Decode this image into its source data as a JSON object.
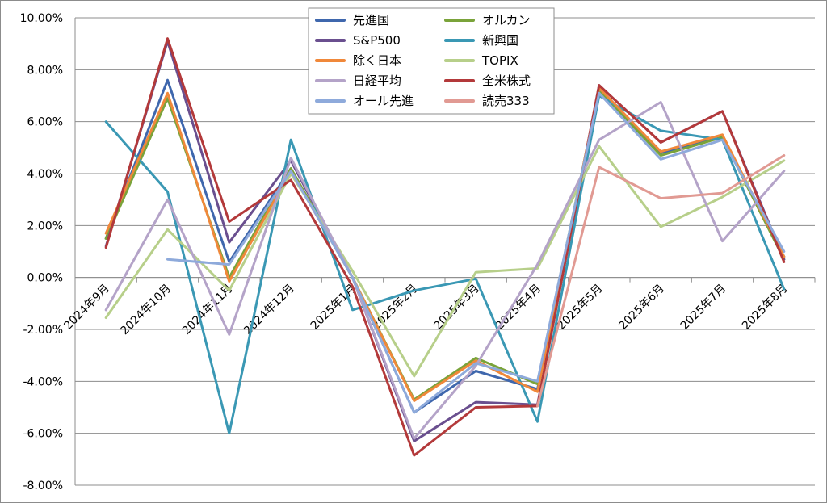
{
  "chart_data": {
    "type": "line",
    "title": "",
    "xlabel": "",
    "ylabel": "",
    "ylim": [
      -0.08,
      0.1
    ],
    "ytick_step": 0.02,
    "grid": true,
    "legend": "top-center",
    "categories": [
      "2024年9月",
      "2024年10月",
      "2024年11月",
      "2024年12月",
      "2025年1月",
      "2025年2月",
      "2025年3月",
      "2025年4月",
      "2025年5月",
      "2025年6月",
      "2025年7月",
      "2025年8月"
    ],
    "series": [
      {
        "name": "先進国",
        "color": "#3f67ad",
        "values": [
          0.015,
          0.076,
          0.006,
          0.042,
          0.0,
          -0.052,
          -0.036,
          -0.043,
          0.072,
          0.048,
          0.054,
          0.008
        ]
      },
      {
        "name": "オルカン",
        "color": "#7aa33a",
        "values": [
          0.015,
          0.069,
          0.0,
          0.042,
          0.0,
          -0.047,
          -0.031,
          -0.041,
          0.072,
          0.047,
          0.054,
          0.007
        ]
      },
      {
        "name": "S&P500",
        "color": "#6a4f8f",
        "values": [
          0.012,
          0.091,
          0.0135,
          0.045,
          0.0,
          -0.063,
          -0.048,
          -0.049,
          0.074,
          0.052,
          0.064,
          0.007
        ]
      },
      {
        "name": "新興国",
        "color": "#3a98b4",
        "values": [
          0.06,
          0.033,
          -0.06,
          0.053,
          -0.0125,
          -0.005,
          -0.0005,
          -0.0555,
          0.07,
          0.0565,
          0.053,
          -0.0045
        ]
      },
      {
        "name": "除く日本",
        "color": "#f0883a",
        "values": [
          0.017,
          0.071,
          -0.0015,
          0.041,
          0.0,
          -0.0475,
          -0.032,
          -0.044,
          0.073,
          0.0485,
          0.055,
          0.008
        ]
      },
      {
        "name": "TOPIX",
        "color": "#b7cf8a",
        "values": [
          -0.0155,
          0.0185,
          -0.005,
          0.04,
          0.0025,
          -0.038,
          0.002,
          0.0035,
          0.0505,
          0.0195,
          0.031,
          0.045
        ]
      },
      {
        "name": "日経平均",
        "color": "#b4a3c8",
        "values": [
          -0.0125,
          0.03,
          -0.022,
          0.046,
          0.0,
          -0.062,
          -0.034,
          0.005,
          0.053,
          0.0675,
          0.014,
          0.041
        ]
      },
      {
        "name": "全米株式",
        "color": "#b3393a",
        "values": [
          0.0115,
          0.092,
          0.0215,
          0.0375,
          -0.0035,
          -0.0685,
          -0.05,
          -0.0495,
          0.074,
          0.052,
          0.064,
          0.006
        ]
      },
      {
        "name": "オール先進",
        "color": "#8eaadb",
        "values": [
          null,
          0.007,
          0.005,
          0.041,
          0.0,
          -0.052,
          -0.033,
          -0.04,
          0.071,
          0.0455,
          0.053,
          0.01
        ]
      },
      {
        "name": "読売333",
        "color": "#e19a93",
        "values": [
          null,
          null,
          null,
          null,
          null,
          null,
          null,
          -0.0495,
          0.0425,
          0.0305,
          0.0325,
          0.047
        ]
      }
    ]
  }
}
